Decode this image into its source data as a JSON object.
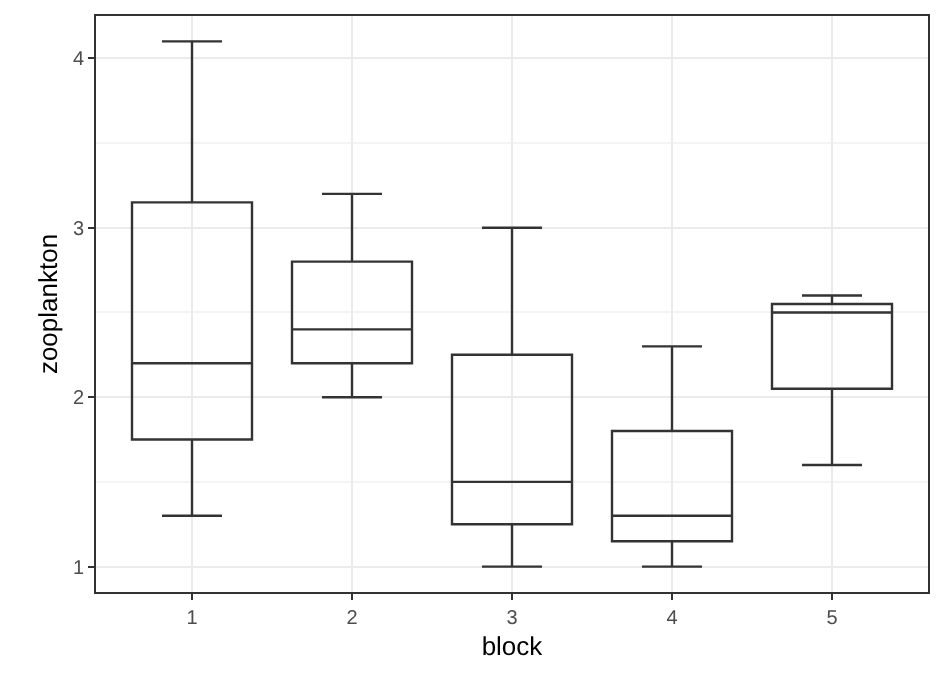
{
  "chart_data": {
    "type": "box",
    "xlabel": "block",
    "ylabel": "zooplankton",
    "categories": [
      "1",
      "2",
      "3",
      "4",
      "5"
    ],
    "boxes": [
      {
        "low": 1.3,
        "q1": 1.75,
        "median": 2.2,
        "q3": 3.15,
        "high": 4.1
      },
      {
        "low": 2.0,
        "q1": 2.2,
        "median": 2.4,
        "q3": 2.8,
        "high": 3.2
      },
      {
        "low": 1.0,
        "q1": 1.25,
        "median": 1.5,
        "q3": 2.25,
        "high": 3.0
      },
      {
        "low": 1.0,
        "q1": 1.15,
        "median": 1.3,
        "q3": 1.8,
        "high": 2.3
      },
      {
        "low": 1.6,
        "q1": 2.05,
        "median": 2.5,
        "q3": 2.55,
        "high": 2.6
      }
    ],
    "color": "#333333",
    "ylim": [
      0.85,
      4.25
    ],
    "yticks": [
      1,
      2,
      3,
      4
    ],
    "grid": true,
    "legend": false
  }
}
